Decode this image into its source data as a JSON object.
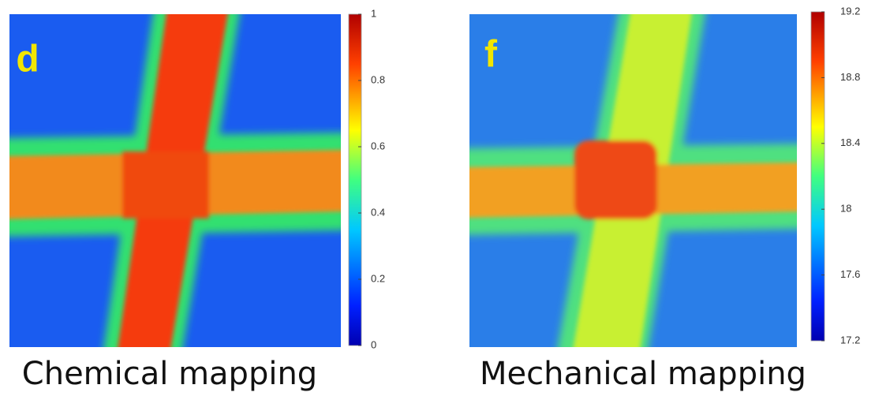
{
  "chart_data": [
    {
      "type": "heatmap",
      "panel_label": "d",
      "caption": "Chemical mapping",
      "zlim": [
        0,
        1
      ],
      "zticks": [
        0,
        0.2,
        0.4,
        0.6,
        0.8,
        1
      ],
      "colormap": "jet"
    },
    {
      "type": "heatmap",
      "panel_label": "f",
      "caption": "Mechanical mapping",
      "zlim": [
        17.2,
        19.2
      ],
      "zticks": [
        17.2,
        17.6,
        18,
        18.4,
        18.8,
        19.2
      ],
      "colormap": "jet"
    }
  ]
}
